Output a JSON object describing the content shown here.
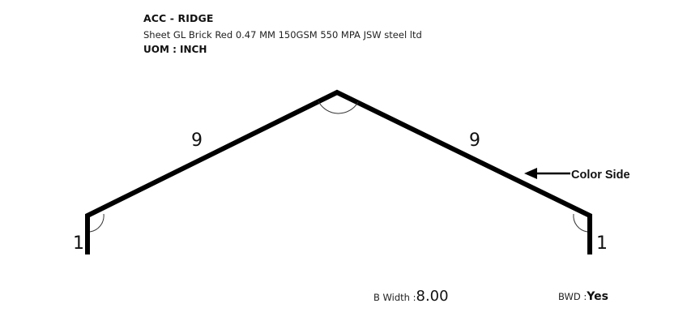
{
  "header": {
    "title": "ACC - RIDGE",
    "description": "Sheet GL Brick Red 0.47 MM 150GSM 550 MPA JSW steel ltd",
    "uom": "UOM : INCH"
  },
  "profile": {
    "segments": {
      "left_flange": "1",
      "left_slope": "9",
      "right_slope": "9",
      "right_flange": "1"
    },
    "color_side_label": "Color Side",
    "stroke_color": "#000000"
  },
  "footer": {
    "b_width_label": "B Width :",
    "b_width_value": "8.00",
    "bwd_label": "BWD :",
    "bwd_value": "Yes"
  }
}
